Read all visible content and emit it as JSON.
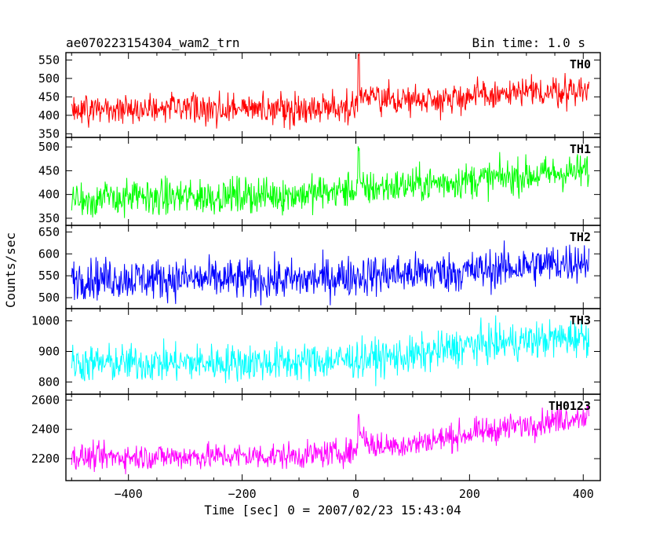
{
  "chart_data": {
    "type": "line",
    "title": "ae070223154304_wam2_trn",
    "bin_time_label": "Bin time: 1.0 s",
    "xlabel": "Time [sec] 0 = 2007/02/23 15:43:04",
    "ylabel": "Counts/sec",
    "x_range": [
      -510,
      430
    ],
    "x_ticks": [
      -400,
      -200,
      0,
      200,
      400
    ],
    "x_tick_labels": [
      "−400",
      "−200",
      "0",
      "200",
      "400"
    ],
    "time_span": [
      -500,
      410
    ],
    "grid": false,
    "panels": [
      {
        "name": "TH0",
        "color": "#ff0000",
        "ylim": [
          340,
          570
        ],
        "yticks": [
          350,
          400,
          450,
          500,
          550
        ],
        "baseline": [
          [
            -500,
            415
          ],
          [
            -100,
            418
          ],
          [
            0,
            425
          ],
          [
            10,
            455
          ],
          [
            40,
            440
          ],
          [
            200,
            450
          ],
          [
            410,
            470
          ]
        ],
        "noise": 22,
        "spike": {
          "t": 5,
          "peak": 570
        }
      },
      {
        "name": "TH1",
        "color": "#00ff00",
        "ylim": [
          335,
          520
        ],
        "yticks": [
          350,
          400,
          450,
          500
        ],
        "baseline": [
          [
            -500,
            390
          ],
          [
            -100,
            400
          ],
          [
            0,
            410
          ],
          [
            200,
            430
          ],
          [
            410,
            450
          ]
        ],
        "noise": 20,
        "spike": {
          "t": 5,
          "peak": 505
        }
      },
      {
        "name": "TH2",
        "color": "#0000ff",
        "ylim": [
          475,
          665
        ],
        "yticks": [
          500,
          550,
          600,
          650
        ],
        "baseline": [
          [
            -500,
            545
          ],
          [
            -100,
            540
          ],
          [
            0,
            550
          ],
          [
            200,
            560
          ],
          [
            410,
            585
          ]
        ],
        "noise": 25,
        "spike": null
      },
      {
        "name": "TH3",
        "color": "#00ffff",
        "ylim": [
          760,
          1040
        ],
        "yticks": [
          800,
          900,
          1000
        ],
        "baseline": [
          [
            -500,
            860
          ],
          [
            -100,
            865
          ],
          [
            0,
            875
          ],
          [
            100,
            885
          ],
          [
            200,
            920
          ],
          [
            410,
            950
          ]
        ],
        "noise": 33,
        "spike": null
      },
      {
        "name": "TH0123",
        "color": "#ff00ff",
        "ylim": [
          2050,
          2640
        ],
        "yticks": [
          2200,
          2400,
          2600
        ],
        "baseline": [
          [
            -500,
            2210
          ],
          [
            -100,
            2220
          ],
          [
            0,
            2250
          ],
          [
            8,
            2380
          ],
          [
            30,
            2280
          ],
          [
            100,
            2300
          ],
          [
            200,
            2370
          ],
          [
            410,
            2500
          ]
        ],
        "noise": 48,
        "spike": {
          "t": 5,
          "peak": 2510
        }
      }
    ]
  }
}
